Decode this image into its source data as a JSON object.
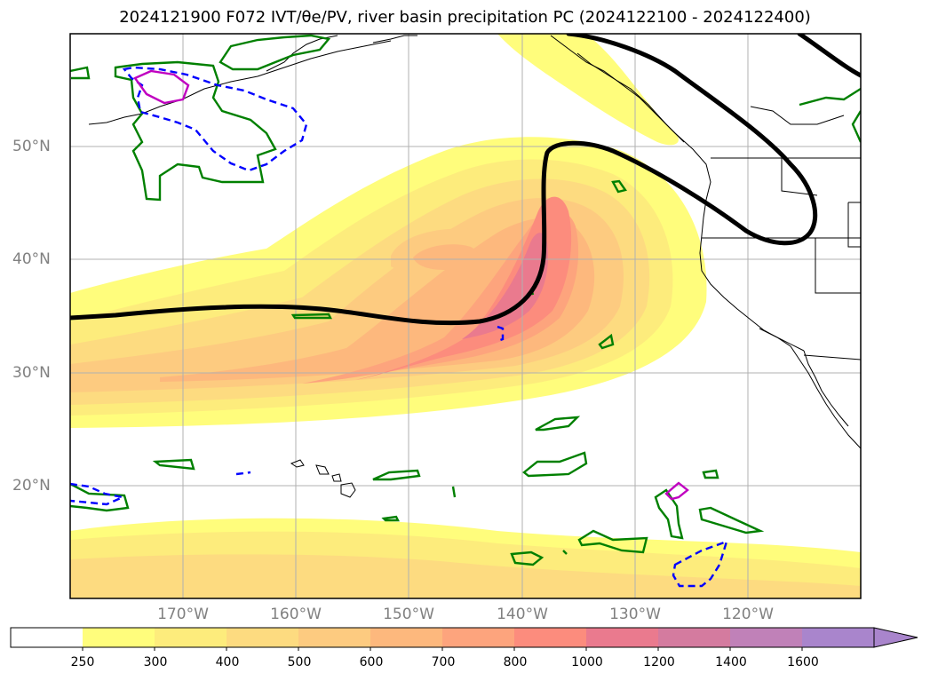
{
  "title": "2024121900 F072 IVT/θe/PV, river basin precipitation PC (2024122100 - 2024122400)",
  "map": {
    "lat_labels": [
      "50°N",
      "40°N",
      "30°N",
      "20°N"
    ],
    "lon_labels": [
      "170°W",
      "160°W",
      "150°W",
      "140°W",
      "130°W",
      "120°W"
    ],
    "extent": {
      "lon": [
        -180,
        -110
      ],
      "lat": [
        10,
        60
      ]
    },
    "gridlines": true,
    "colors": {
      "coastline": "#000000",
      "theta_e_contour": "#000000",
      "pv_positive": "#008000",
      "pv_negative": "#0000ff",
      "pv_high": "#c000c0"
    }
  },
  "colorbar": {
    "levels": [
      "250",
      "300",
      "400",
      "500",
      "600",
      "700",
      "800",
      "1000",
      "1200",
      "1400",
      "1600"
    ],
    "colors": [
      "#ffffff",
      "#fffd7c",
      "#fdec7c",
      "#fddb80",
      "#fdcb80",
      "#fdb87d",
      "#fda47d",
      "#fc8c7d",
      "#ea7a8e",
      "#d47b9f",
      "#c081b8",
      "#a985cc"
    ],
    "extend": "max"
  }
}
